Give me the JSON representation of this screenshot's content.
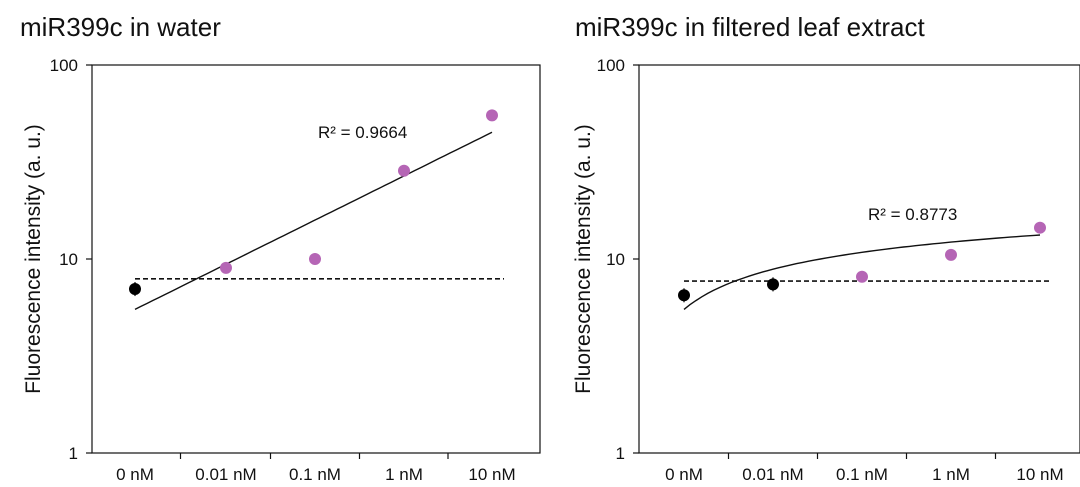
{
  "chart_data": [
    {
      "type": "scatter",
      "title": "miR399c in water",
      "xlabel": "",
      "ylabel": "Fluorescence intensity (a. u.)",
      "y_scale": "log",
      "ylim": [
        1,
        100
      ],
      "y_ticks": [
        "1",
        "10",
        "100"
      ],
      "categories": [
        "0 nM",
        "0.01 nM",
        "0.1 nM",
        "1 nM",
        "10 nM"
      ],
      "points": [
        {
          "x": "0 nM",
          "y": 7.0,
          "color": "#000000"
        },
        {
          "x": "0.01 nM",
          "y": 9.0,
          "color": "#b565b5"
        },
        {
          "x": "0.1 nM",
          "y": 10.0,
          "color": "#b565b5"
        },
        {
          "x": "1 nM",
          "y": 28.5,
          "color": "#b565b5"
        },
        {
          "x": "10 nM",
          "y": 55.0,
          "color": "#b565b5"
        }
      ],
      "baseline": 7.9,
      "trendline": {
        "type": "power",
        "start": 5.5,
        "end": 45.0
      },
      "r_squared_label": "R² = 0.9664"
    },
    {
      "type": "scatter",
      "title": "miR399c in filtered leaf extract",
      "xlabel": "",
      "ylabel": "Fluorescence intensity (a. u.)",
      "y_scale": "log",
      "ylim": [
        1,
        100
      ],
      "y_ticks": [
        "1",
        "10",
        "100"
      ],
      "categories": [
        "0 nM",
        "0.01 nM",
        "0.1 nM",
        "1 nM",
        "10 nM"
      ],
      "points": [
        {
          "x": "0 nM",
          "y": 6.5,
          "color": "#000000"
        },
        {
          "x": "0.01 nM",
          "y": 7.4,
          "color": "#000000"
        },
        {
          "x": "0.1 nM",
          "y": 8.1,
          "color": "#b565b5"
        },
        {
          "x": "1 nM",
          "y": 10.5,
          "color": "#b565b5"
        },
        {
          "x": "10 nM",
          "y": 14.5,
          "color": "#b565b5"
        }
      ],
      "baseline": 7.7,
      "trendline": {
        "type": "log",
        "start": 5.5,
        "end": 13.3
      },
      "r_squared_label": "R² = 0.8773"
    }
  ]
}
